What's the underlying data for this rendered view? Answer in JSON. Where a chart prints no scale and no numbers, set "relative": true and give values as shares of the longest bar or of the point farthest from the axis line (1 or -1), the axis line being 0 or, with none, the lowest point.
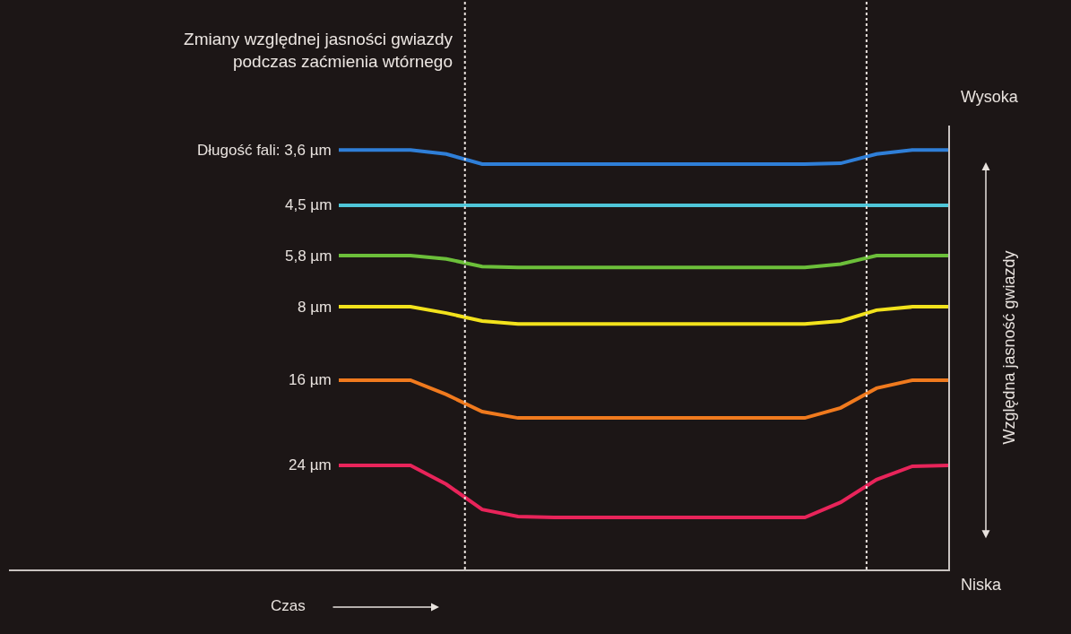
{
  "chart_data": {
    "type": "line",
    "relative": true,
    "title": "Zmiany względnej jasności gwiazdy podczas zaćmienia wtórnego",
    "xlabel": "Czas",
    "ylabel": "Względna jasność gwiazdy",
    "annotations": [
      "Wysoka",
      "Niska"
    ],
    "categories": [
      null,
      null,
      null,
      null,
      null,
      null,
      null,
      null,
      null,
      null,
      null,
      null,
      null,
      null,
      null,
      null,
      null,
      null
    ],
    "legend": false,
    "marker": "none",
    "line_style": "solid",
    "series": [
      {
        "name": "Długość fali: 3,6 µm",
        "color": "#2f7fd8",
        "values": [
          1,
          1,
          1,
          0.99,
          0.966,
          0.966,
          0.966,
          0.966,
          0.966,
          0.966,
          0.966,
          0.966,
          0.966,
          0.966,
          0.968,
          0.99,
          1,
          1
        ]
      },
      {
        "name": "4,5 µm",
        "color": "#4fc6d8",
        "values": [
          0.868,
          0.868,
          0.868,
          0.868,
          0.868,
          0.868,
          0.868,
          0.868,
          0.868,
          0.868,
          0.868,
          0.868,
          0.868,
          0.868,
          0.868,
          0.868,
          0.868,
          0.868
        ]
      },
      {
        "name": "5,8 µm",
        "color": "#6cbf3a",
        "values": [
          0.748,
          0.748,
          0.748,
          0.74,
          0.722,
          0.72,
          0.72,
          0.72,
          0.72,
          0.72,
          0.72,
          0.72,
          0.72,
          0.72,
          0.728,
          0.748,
          0.748,
          0.748
        ]
      },
      {
        "name": "8 µm",
        "color": "#f2e21c",
        "values": [
          0.626,
          0.626,
          0.626,
          0.611,
          0.592,
          0.585,
          0.585,
          0.585,
          0.585,
          0.585,
          0.585,
          0.585,
          0.585,
          0.585,
          0.592,
          0.618,
          0.626,
          0.626
        ]
      },
      {
        "name": "16 µm",
        "color": "#f07a1e",
        "values": [
          0.451,
          0.451,
          0.451,
          0.417,
          0.376,
          0.361,
          0.361,
          0.361,
          0.361,
          0.361,
          0.361,
          0.361,
          0.361,
          0.361,
          0.385,
          0.432,
          0.451,
          0.451
        ]
      },
      {
        "name": "24 µm",
        "color": "#e8245a",
        "values": [
          0.248,
          0.248,
          0.248,
          0.203,
          0.143,
          0.126,
          0.124,
          0.124,
          0.124,
          0.124,
          0.124,
          0.124,
          0.124,
          0.124,
          0.16,
          0.214,
          0.246,
          0.248
        ]
      }
    ]
  }
}
